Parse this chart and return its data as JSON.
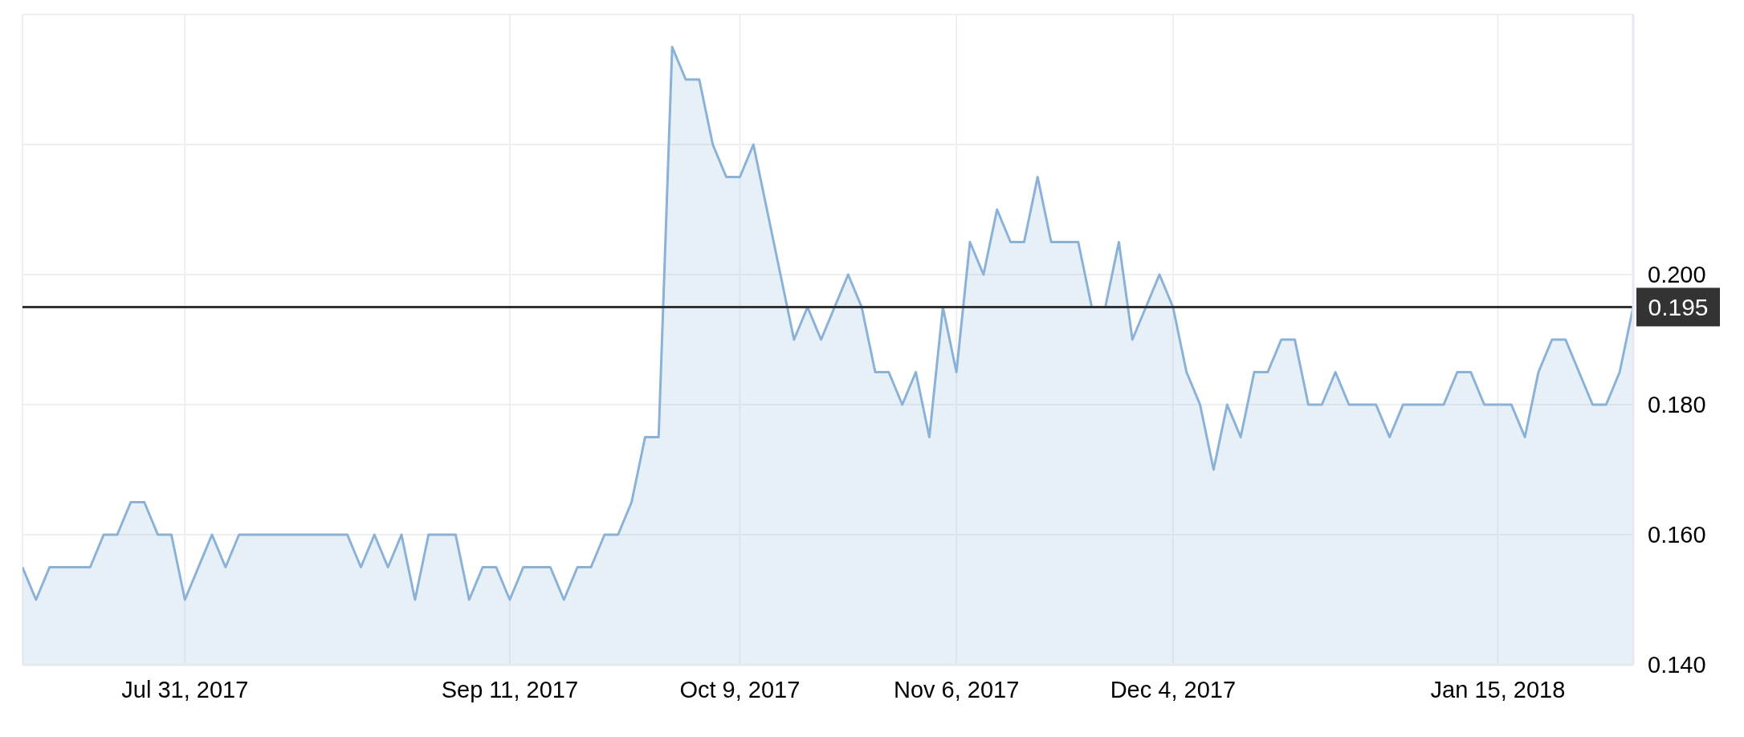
{
  "chart_data": {
    "type": "area",
    "categories": [
      null,
      null,
      null,
      null,
      null,
      null,
      null,
      null,
      null,
      null,
      null,
      null,
      "Jul 31, 2017",
      null,
      null,
      null,
      null,
      null,
      null,
      null,
      null,
      null,
      null,
      null,
      null,
      null,
      null,
      null,
      null,
      null,
      null,
      null,
      null,
      null,
      null,
      null,
      "Sep 11, 2017",
      null,
      null,
      null,
      null,
      null,
      null,
      null,
      null,
      null,
      null,
      null,
      null,
      null,
      null,
      null,
      null,
      "Oct 9, 2017",
      null,
      null,
      null,
      null,
      null,
      null,
      null,
      null,
      null,
      null,
      null,
      null,
      null,
      null,
      null,
      "Nov 6, 2017",
      null,
      null,
      null,
      null,
      null,
      null,
      null,
      null,
      null,
      null,
      null,
      null,
      null,
      null,
      null,
      "Dec 4, 2017",
      null,
      null,
      null,
      null,
      null,
      null,
      null,
      null,
      null,
      null,
      null,
      null,
      null,
      null,
      null,
      null,
      null,
      null,
      null,
      null,
      null,
      null,
      null,
      "Jan 15, 2018",
      null,
      null,
      null,
      null,
      null,
      null,
      null,
      null,
      null,
      null
    ],
    "series": [
      {
        "color": "#8ab2d8",
        "values": [
          0.155,
          0.15,
          0.155,
          0.155,
          0.155,
          0.155,
          0.16,
          0.16,
          0.165,
          0.165,
          0.16,
          0.16,
          0.15,
          0.155,
          0.16,
          0.155,
          0.16,
          0.16,
          0.16,
          0.16,
          0.16,
          0.16,
          0.16,
          0.16,
          0.16,
          0.155,
          0.16,
          0.155,
          0.16,
          0.15,
          0.16,
          0.16,
          0.16,
          0.15,
          0.155,
          0.155,
          0.15,
          0.155,
          0.155,
          0.155,
          0.15,
          0.155,
          0.155,
          0.16,
          0.16,
          0.165,
          0.175,
          0.175,
          0.235,
          0.23,
          0.23,
          0.22,
          0.215,
          0.215,
          0.22,
          0.21,
          0.2,
          0.19,
          0.195,
          0.19,
          0.195,
          0.2,
          0.195,
          0.185,
          0.185,
          0.18,
          0.185,
          0.175,
          0.195,
          0.185,
          0.205,
          0.2,
          0.21,
          0.205,
          0.205,
          0.215,
          0.205,
          0.205,
          0.205,
          0.195,
          0.195,
          0.205,
          0.19,
          0.195,
          0.2,
          0.195,
          0.185,
          0.18,
          0.17,
          0.18,
          0.175,
          0.185,
          0.185,
          0.19,
          0.19,
          0.18,
          0.18,
          0.185,
          0.18,
          0.18,
          0.18,
          0.175,
          0.18,
          0.18,
          0.18,
          0.18,
          0.185,
          0.185,
          0.18,
          0.18,
          0.18,
          0.175,
          0.185,
          0.19,
          0.19,
          0.185,
          0.18,
          0.18,
          0.185,
          0.195
        ]
      }
    ],
    "ylim": [
      0.14,
      0.24
    ],
    "yticks": [
      {
        "value": 0.14,
        "label": "0.140"
      },
      {
        "value": 0.16,
        "label": "0.160"
      },
      {
        "value": 0.18,
        "label": "0.180"
      },
      {
        "value": 0.2,
        "label": "0.200"
      },
      {
        "value": 0.22,
        "label": null
      },
      {
        "value": 0.24,
        "label": null
      }
    ],
    "ref_lines": [
      {
        "axis": "y",
        "value": 0.195,
        "label": "0.195",
        "color": "#333333"
      }
    ],
    "grid": true
  }
}
